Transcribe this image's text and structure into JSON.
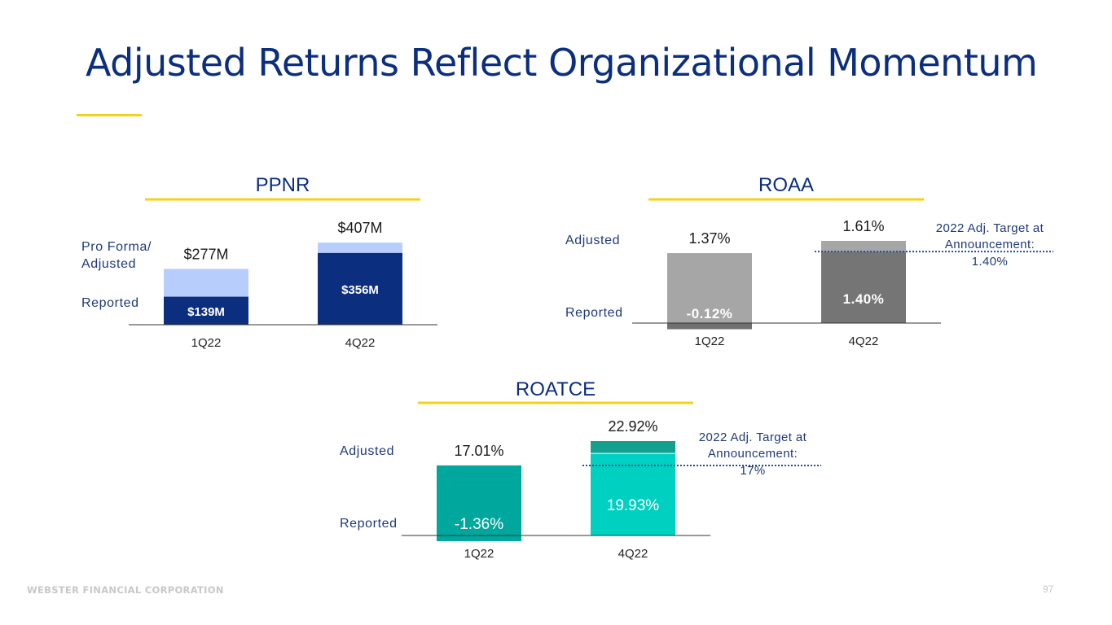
{
  "title": "Adjusted Returns Reflect Organizational Momentum",
  "footer": {
    "company": "WEBSTER FINANCIAL CORPORATION",
    "page": "97"
  },
  "colors": {
    "title": "#0b2e7e",
    "accent": "#f7d117",
    "ppnr_reported": "#0b2e7e",
    "ppnr_adjusted": "#b7cdfb",
    "roaa_1q": "#a6a6a6",
    "roaa_4q_reported": "#757575",
    "roatce_1q": "#00a79d",
    "roatce_4q_reported": "#00d0c0",
    "roatce_4q_adjusted": "#13a08f",
    "target_line": "#1f4e9c",
    "label_text": "#1f3a78"
  },
  "chart_data": [
    {
      "id": "ppnr",
      "type": "bar",
      "title": "PPNR",
      "categories": [
        "1Q22",
        "4Q22"
      ],
      "series": [
        {
          "name": "Reported",
          "values": [
            139,
            356
          ],
          "labels": [
            "$139M",
            "$356M"
          ]
        },
        {
          "name": "Pro Forma/ Adjusted",
          "values": [
            277,
            407
          ],
          "labels": [
            "$277M",
            "$407M"
          ]
        }
      ],
      "series_label_lines": [
        [
          "Reported"
        ],
        [
          "Pro Forma/",
          "Adjusted"
        ]
      ],
      "ylim": [
        0,
        420
      ]
    },
    {
      "id": "roaa",
      "type": "bar",
      "title": "ROAA",
      "categories": [
        "1Q22",
        "4Q22"
      ],
      "series": [
        {
          "name": "Reported",
          "values": [
            -0.12,
            1.4
          ],
          "labels": [
            "-0.12%",
            "1.40%"
          ]
        },
        {
          "name": "Adjusted",
          "values": [
            1.37,
            1.61
          ],
          "labels": [
            "1.37%",
            "1.61%"
          ]
        }
      ],
      "series_label_lines": [
        [
          "Reported"
        ],
        [
          "Adjusted"
        ]
      ],
      "target": {
        "value": 1.4,
        "label_lines": [
          "2022 Adj. Target at",
          "Announcement:",
          "1.40%"
        ]
      },
      "ylim": [
        -0.12,
        1.61
      ]
    },
    {
      "id": "roatce",
      "type": "bar",
      "title": "ROATCE",
      "categories": [
        "1Q22",
        "4Q22"
      ],
      "series": [
        {
          "name": "Reported",
          "values": [
            -1.36,
            19.93
          ],
          "labels": [
            "-1.36%",
            "19.93%"
          ]
        },
        {
          "name": "Adjusted",
          "values": [
            17.01,
            22.92
          ],
          "labels": [
            "17.01%",
            "22.92%"
          ]
        }
      ],
      "series_label_lines": [
        [
          "Reported"
        ],
        [
          "Adjusted"
        ]
      ],
      "target": {
        "value": 17,
        "label_lines": [
          "2022 Adj. Target at",
          "Announcement:",
          "17%"
        ]
      },
      "ylim": [
        -1.36,
        22.92
      ]
    }
  ]
}
